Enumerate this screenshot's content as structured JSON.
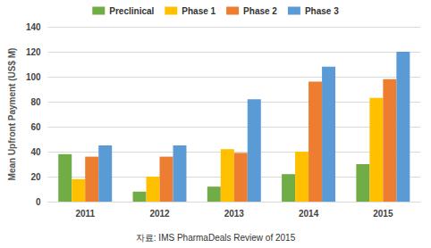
{
  "chart_data": {
    "type": "bar",
    "categories": [
      "2011",
      "2012",
      "2013",
      "2014",
      "2015"
    ],
    "series": [
      {
        "name": "Preclinical",
        "color": "#70ad47",
        "values": [
          38,
          8,
          12,
          22,
          30
        ]
      },
      {
        "name": "Phase 1",
        "color": "#ffc000",
        "values": [
          18,
          20,
          42,
          40,
          83
        ]
      },
      {
        "name": "Phase 2",
        "color": "#ed7d31",
        "values": [
          36,
          36,
          39,
          96,
          98
        ]
      },
      {
        "name": "Phase 3",
        "color": "#5b9bd5",
        "values": [
          45,
          45,
          82,
          108,
          120
        ]
      }
    ],
    "y_label": "Mean Upfront Payment (US$ M)",
    "caption": "자료: IMS PharmaDeals Review of 2015",
    "ylim": [
      0,
      140
    ],
    "yticks": [
      0,
      20,
      40,
      60,
      80,
      100,
      120,
      140
    ],
    "grid": true,
    "legend": "top"
  }
}
